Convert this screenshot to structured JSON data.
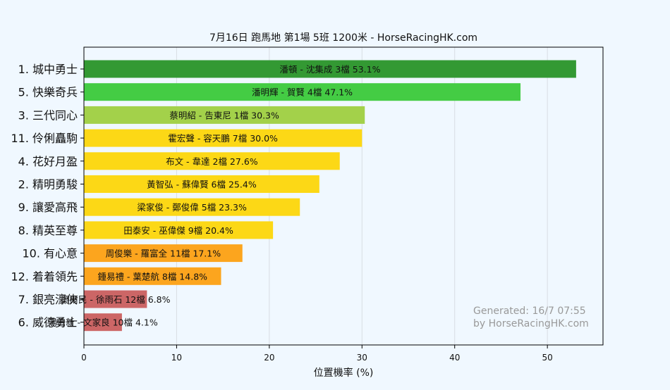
{
  "chart_data": {
    "type": "bar",
    "orientation": "horizontal",
    "title": "7月16日  跑馬地  第1場  5班  1200米 - HorseRacingHK.com",
    "xlabel": "位置機率 (%)",
    "ylabel": "",
    "xlim": [
      0,
      56
    ],
    "xticks": [
      "0",
      "10",
      "20",
      "30",
      "40",
      "50"
    ],
    "grid": "vertical",
    "categories": [
      "1. 城中勇士",
      "5. 快樂奇兵",
      "3. 三代同心",
      "11. 伶俐矗駒",
      "4. 花好月盈",
      "2. 精明勇駿",
      "9. 讓愛高飛",
      "8. 精英至尊",
      "10. 有心意",
      "12. 着着領先",
      "7. 銀亮濠俠",
      "6. 威德勇士"
    ],
    "values": [
      53.1,
      47.1,
      30.3,
      30.0,
      27.6,
      25.4,
      23.3,
      20.4,
      17.1,
      14.8,
      6.8,
      4.1
    ],
    "bar_labels": [
      "潘頓 - 沈集成 3檔  53.1%",
      "潘明輝 - 賀賢 4檔  47.1%",
      "蔡明紹 - 告東尼 1檔  30.3%",
      "霍宏聲 - 容天鵬 7檔  30.0%",
      "布文 - 韋達 2檔  27.6%",
      "黃智弘 - 蘇偉賢 6檔  25.4%",
      "梁家俊 - 鄭俊偉 5檔  23.3%",
      "田泰安 - 巫偉傑 9檔  20.4%",
      "周俊樂 - 羅富全 11檔  17.1%",
      "鍾易禮 - 葉楚航 8檔  14.8%",
      "奧爾民 - 徐雨石 12檔  6.8%",
      "湯普新 - 文家良 10檔  4.1%"
    ],
    "colors": [
      "#339933",
      "#44cc44",
      "#a3d14a",
      "#fcd816",
      "#fcd816",
      "#fcd816",
      "#fcd816",
      "#fcd816",
      "#fca51e",
      "#fca51e",
      "#cc6666",
      "#cc6666"
    ],
    "watermark": [
      "Generated: 16/7 07:55",
      "by HorseRacingHK.com"
    ]
  }
}
